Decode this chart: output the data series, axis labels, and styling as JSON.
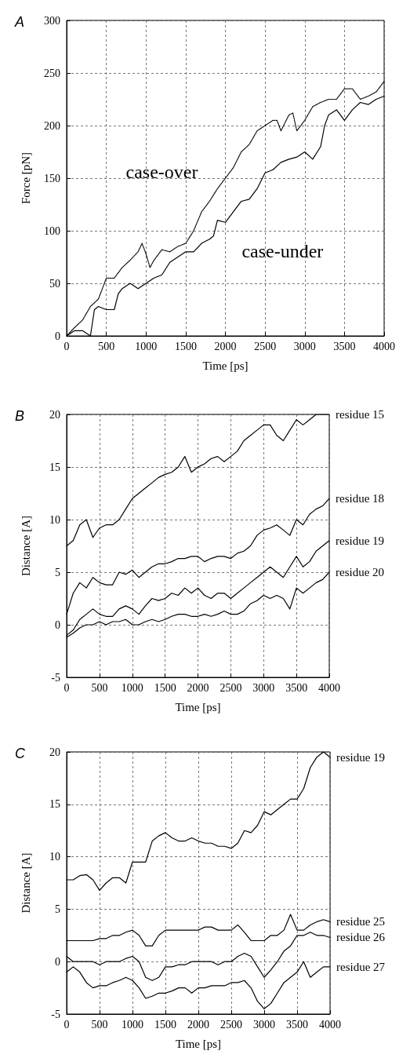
{
  "chart_data": [
    {
      "type": "line",
      "title": "A",
      "xlabel": "Time [ps]",
      "ylabel": "Force [pN]",
      "xlim": [
        0,
        4000
      ],
      "xticks": [
        0,
        500,
        1000,
        1500,
        2000,
        2500,
        3000,
        3500,
        4000
      ],
      "ylim": [
        0,
        300
      ],
      "yticks": [
        0,
        50,
        100,
        150,
        200,
        250,
        300
      ],
      "grid": true,
      "annotations": [
        "case-over",
        "case-under"
      ],
      "series": [
        {
          "color": "#000000",
          "line_style": "dotted",
          "x": [
            0,
            100,
            200,
            300,
            400,
            500,
            600,
            700,
            800,
            900,
            950,
            1000,
            1050,
            1100,
            1200,
            1300,
            1400,
            1500,
            1600,
            1700,
            1800,
            1900,
            2000,
            2100,
            2200,
            2300,
            2400,
            2500,
            2600,
            2650,
            2700,
            2800,
            2850,
            2900,
            3000,
            3100,
            3200,
            3300,
            3400,
            3500,
            3600,
            3700,
            3800,
            3900,
            4000
          ],
          "values": [
            0,
            8,
            15,
            28,
            35,
            55,
            55,
            65,
            72,
            80,
            88,
            78,
            65,
            72,
            82,
            80,
            85,
            88,
            100,
            118,
            128,
            140,
            150,
            160,
            175,
            182,
            195,
            200,
            205,
            205,
            195,
            210,
            212,
            195,
            205,
            218,
            222,
            225,
            225,
            235,
            235,
            225,
            228,
            232,
            242
          ]
        },
        {
          "color": "#000000",
          "line_style": "solid",
          "x": [
            0,
            100,
            200,
            300,
            350,
            400,
            500,
            600,
            650,
            700,
            800,
            900,
            1000,
            1100,
            1200,
            1300,
            1400,
            1500,
            1600,
            1700,
            1800,
            1850,
            1900,
            2000,
            2100,
            2200,
            2300,
            2400,
            2500,
            2600,
            2700,
            2800,
            2900,
            3000,
            3100,
            3200,
            3250,
            3300,
            3400,
            3500,
            3600,
            3700,
            3800,
            3900,
            4000
          ],
          "values": [
            0,
            5,
            5,
            0,
            25,
            28,
            25,
            25,
            40,
            45,
            50,
            45,
            50,
            55,
            58,
            70,
            75,
            80,
            80,
            88,
            92,
            95,
            110,
            108,
            118,
            128,
            130,
            140,
            155,
            158,
            165,
            168,
            170,
            175,
            168,
            180,
            200,
            210,
            215,
            205,
            215,
            222,
            220,
            225,
            228
          ]
        }
      ]
    },
    {
      "type": "line",
      "title": "B",
      "xlabel": "Time [ps]",
      "ylabel": "Distance [A]",
      "xlim": [
        0,
        4000
      ],
      "xticks": [
        0,
        500,
        1000,
        1500,
        2000,
        2500,
        3000,
        3500,
        4000
      ],
      "ylim": [
        -5,
        20
      ],
      "yticks": [
        -5,
        0,
        5,
        10,
        15,
        20
      ],
      "grid": true,
      "x": [
        0,
        100,
        200,
        300,
        400,
        500,
        600,
        700,
        800,
        900,
        1000,
        1100,
        1200,
        1300,
        1400,
        1500,
        1600,
        1700,
        1800,
        1900,
        2000,
        2100,
        2200,
        2300,
        2400,
        2500,
        2600,
        2700,
        2800,
        2900,
        3000,
        3100,
        3200,
        3300,
        3400,
        3500,
        3600,
        3700,
        3800,
        3900,
        4000
      ],
      "series": [
        {
          "name": "residue 15",
          "color": "#000000",
          "values": [
            7.5,
            8,
            9.5,
            10,
            8.3,
            9.2,
            9.5,
            9.5,
            10,
            11,
            12,
            12.5,
            13,
            13.5,
            14,
            14.3,
            14.5,
            15,
            16,
            14.5,
            15,
            15.3,
            15.8,
            16,
            15.5,
            16,
            16.5,
            17.5,
            18,
            18.5,
            19,
            19,
            18,
            17.5,
            18.5,
            19.5,
            19,
            19.5,
            20,
            20,
            20
          ]
        },
        {
          "name": "residue 18",
          "color": "#000000",
          "values": [
            1,
            3,
            4,
            3.5,
            4.5,
            4,
            3.8,
            3.8,
            5,
            4.8,
            5.2,
            4.5,
            5,
            5.5,
            5.8,
            5.8,
            6,
            6.3,
            6.3,
            6.5,
            6.5,
            6,
            6.3,
            6.5,
            6.5,
            6.3,
            6.8,
            7,
            7.5,
            8.5,
            9,
            9.2,
            9.5,
            9,
            8.5,
            10,
            9.5,
            10.5,
            11,
            11.3,
            12
          ]
        },
        {
          "name": "residue 19",
          "color": "#000000",
          "values": [
            -1,
            -0.5,
            0.5,
            1,
            1.5,
            1,
            0.8,
            0.8,
            1.5,
            1.8,
            1.5,
            1,
            1.8,
            2.5,
            2.3,
            2.5,
            3,
            2.8,
            3.5,
            3,
            3.5,
            2.8,
            2.5,
            3,
            3,
            2.5,
            3,
            3.5,
            4,
            4.5,
            5,
            5.5,
            5,
            4.5,
            5.5,
            6.5,
            5.5,
            6,
            7,
            7.5,
            8
          ]
        },
        {
          "name": "residue 20",
          "color": "#000000",
          "values": [
            -1.2,
            -0.8,
            -0.3,
            0,
            0,
            0.3,
            0,
            0.3,
            0.3,
            0.5,
            0,
            0,
            0.3,
            0.5,
            0.3,
            0.5,
            0.8,
            1,
            1,
            0.8,
            0.8,
            1,
            0.8,
            1,
            1.3,
            1,
            1,
            1.3,
            2,
            2.3,
            2.8,
            2.5,
            2.8,
            2.5,
            1.5,
            3.5,
            3,
            3.5,
            4,
            4.3,
            5
          ]
        }
      ]
    },
    {
      "type": "line",
      "title": "C",
      "xlabel": "Time [ps]",
      "ylabel": "Distance [A]",
      "xlim": [
        0,
        4000
      ],
      "xticks": [
        0,
        500,
        1000,
        1500,
        2000,
        2500,
        3000,
        3500,
        4000
      ],
      "ylim": [
        -5,
        20
      ],
      "yticks": [
        -5,
        0,
        5,
        10,
        15,
        20
      ],
      "grid": true,
      "x": [
        0,
        100,
        200,
        300,
        400,
        500,
        600,
        700,
        800,
        900,
        1000,
        1100,
        1200,
        1300,
        1400,
        1500,
        1600,
        1700,
        1800,
        1900,
        2000,
        2100,
        2200,
        2300,
        2400,
        2500,
        2600,
        2700,
        2800,
        2900,
        3000,
        3100,
        3200,
        3300,
        3400,
        3500,
        3600,
        3700,
        3800,
        3900,
        4000
      ],
      "series": [
        {
          "name": "residue 19",
          "color": "#000000",
          "values": [
            7.8,
            7.8,
            8.2,
            8.3,
            7.8,
            6.8,
            7.5,
            8,
            8,
            7.5,
            9.5,
            9.5,
            9.5,
            11.5,
            12,
            12.3,
            11.8,
            11.5,
            11.5,
            11.8,
            11.5,
            11.3,
            11.3,
            11,
            11,
            10.8,
            11.3,
            12.5,
            12.3,
            13,
            14.3,
            14,
            14.5,
            15,
            15.5,
            15.5,
            16.5,
            18.5,
            19.5,
            20,
            19.5
          ]
        },
        {
          "name": "residue 25",
          "color": "#000000",
          "values": [
            2,
            2,
            2,
            2,
            2,
            2.2,
            2.2,
            2.5,
            2.5,
            2.8,
            3,
            2.5,
            1.5,
            1.5,
            2.5,
            3,
            3,
            3,
            3,
            3,
            3,
            3.3,
            3.3,
            3,
            3,
            3,
            3.5,
            2.8,
            2,
            2,
            2,
            2.5,
            2.5,
            3,
            4.5,
            3,
            3,
            3.5,
            3.8,
            4,
            3.8
          ]
        },
        {
          "name": "residue 26",
          "color": "#000000",
          "values": [
            0.5,
            0,
            0,
            0,
            0,
            -0.3,
            0,
            0,
            0,
            0.3,
            0.5,
            0,
            -1.5,
            -1.8,
            -1.5,
            -0.5,
            -0.5,
            -0.3,
            -0.3,
            0,
            0,
            0,
            0,
            -0.3,
            0,
            0,
            0.5,
            0.8,
            0.5,
            -0.5,
            -1.5,
            -0.8,
            0,
            1,
            1.5,
            2.5,
            2.5,
            2.8,
            2.5,
            2.5,
            2.3
          ]
        },
        {
          "name": "residue 27",
          "color": "#000000",
          "values": [
            -1,
            -0.5,
            -1,
            -2,
            -2.5,
            -2.3,
            -2.3,
            -2,
            -1.8,
            -1.5,
            -1.8,
            -2.5,
            -3.5,
            -3.3,
            -3,
            -3,
            -2.8,
            -2.5,
            -2.5,
            -3,
            -2.5,
            -2.5,
            -2.3,
            -2.3,
            -2.3,
            -2,
            -2,
            -1.8,
            -2.5,
            -3.8,
            -4.5,
            -4,
            -3,
            -2,
            -1.5,
            -1,
            0,
            -1.5,
            -1,
            -0.5,
            -0.5
          ]
        }
      ]
    }
  ]
}
